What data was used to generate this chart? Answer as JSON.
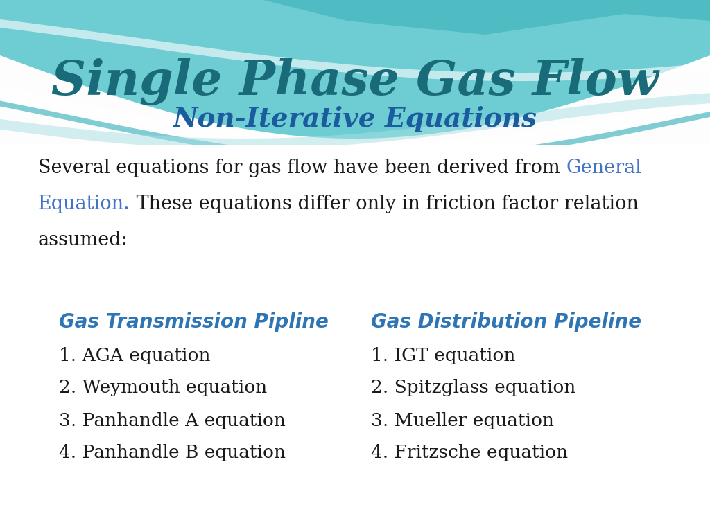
{
  "title": "Single Phase Gas Flow",
  "subtitle": "Non-Iterative Equations",
  "title_color": "#1a6b7a",
  "subtitle_color": "#1a5c9e",
  "bg_color": "#f0f0f0",
  "body_text_color": "#1a1a1a",
  "link_color": "#4472c4",
  "header_color": "#2e75b6",
  "col1_header": "Gas Transmission Pipline",
  "col2_header": "Gas Distribution Pipeline",
  "col1_items": [
    "1. AGA equation",
    "2. Weymouth equation",
    "3. Panhandle A equation",
    "4. Panhandle B equation"
  ],
  "col2_items": [
    "1. IGT equation",
    "2. Spitzglass equation",
    "3. Mueller equation",
    "4. Fritzsche equation"
  ],
  "wave_teal_dark": "#4ab8c0",
  "wave_teal_mid": "#6dcdd3",
  "wave_teal_light": "#a8dfe2",
  "wave_white": "#ffffff"
}
